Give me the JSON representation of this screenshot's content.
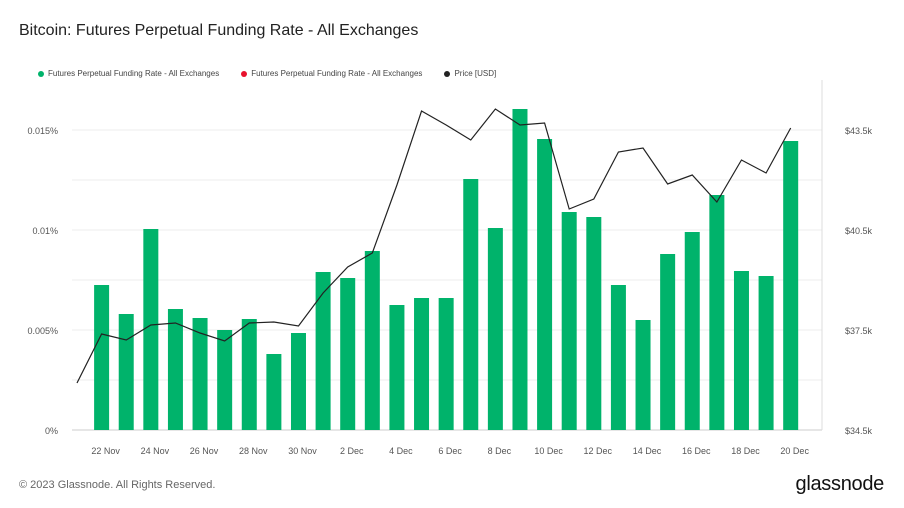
{
  "chart_data": {
    "type": "bar",
    "title": "Bitcoin: Futures Perpetual Funding Rate - All Exchanges",
    "legend": [
      {
        "label": "Futures Perpetual Funding Rate - All Exchanges",
        "color": "#00b36b"
      },
      {
        "label": "Futures Perpetual Funding Rate - All Exchanges",
        "color": "#e8112d"
      },
      {
        "label": "Price [USD]",
        "color": "#222222"
      }
    ],
    "legend_position": "top-left",
    "x_dates": [
      "21 Nov",
      "22 Nov",
      "23 Nov",
      "24 Nov",
      "25 Nov",
      "26 Nov",
      "27 Nov",
      "28 Nov",
      "29 Nov",
      "30 Nov",
      "1 Dec",
      "2 Dec",
      "3 Dec",
      "4 Dec",
      "5 Dec",
      "6 Dec",
      "7 Dec",
      "8 Dec",
      "9 Dec",
      "10 Dec",
      "11 Dec",
      "12 Dec",
      "13 Dec",
      "14 Dec",
      "15 Dec",
      "16 Dec",
      "17 Dec",
      "18 Dec",
      "19 Dec",
      "20 Dec"
    ],
    "x_ticks": [
      "22 Nov",
      "24 Nov",
      "26 Nov",
      "28 Nov",
      "30 Nov",
      "2 Dec",
      "4 Dec",
      "6 Dec",
      "8 Dec",
      "10 Dec",
      "12 Dec",
      "14 Dec",
      "16 Dec",
      "18 Dec",
      "20 Dec"
    ],
    "funding_rate_pct": [
      null,
      0.00725,
      0.0058,
      0.01005,
      0.00605,
      0.0056,
      0.005,
      0.00555,
      0.0038,
      0.00485,
      0.0079,
      0.0076,
      0.00895,
      0.00625,
      0.0066,
      0.0066,
      0.01255,
      0.0101,
      0.01605,
      0.01455,
      0.0109,
      0.01065,
      0.00725,
      0.0055,
      0.0088,
      0.0099,
      0.01175,
      0.00795,
      0.0077,
      0.01445
    ],
    "price_usd_k": [
      35.91,
      37.38,
      37.2,
      37.65,
      37.71,
      37.41,
      37.17,
      37.71,
      37.74,
      37.62,
      38.61,
      39.39,
      39.81,
      41.85,
      44.07,
      43.65,
      43.2,
      44.13,
      43.65,
      43.71,
      41.13,
      41.43,
      42.84,
      42.96,
      41.88,
      42.15,
      41.34,
      42.6,
      42.21,
      43.56
    ],
    "y_left": {
      "ticks": [
        "0%",
        "0.005%",
        "0.01%",
        "0.015%"
      ],
      "range": [
        0,
        0.016
      ]
    },
    "y_right": {
      "ticks": [
        "$34.5k",
        "$37.5k",
        "$40.5k",
        "$43.5k"
      ],
      "range": [
        34.5,
        44.5
      ]
    },
    "grid": true
  },
  "footer": "© 2023 Glassnode. All Rights Reserved.",
  "logo": "glassnode"
}
